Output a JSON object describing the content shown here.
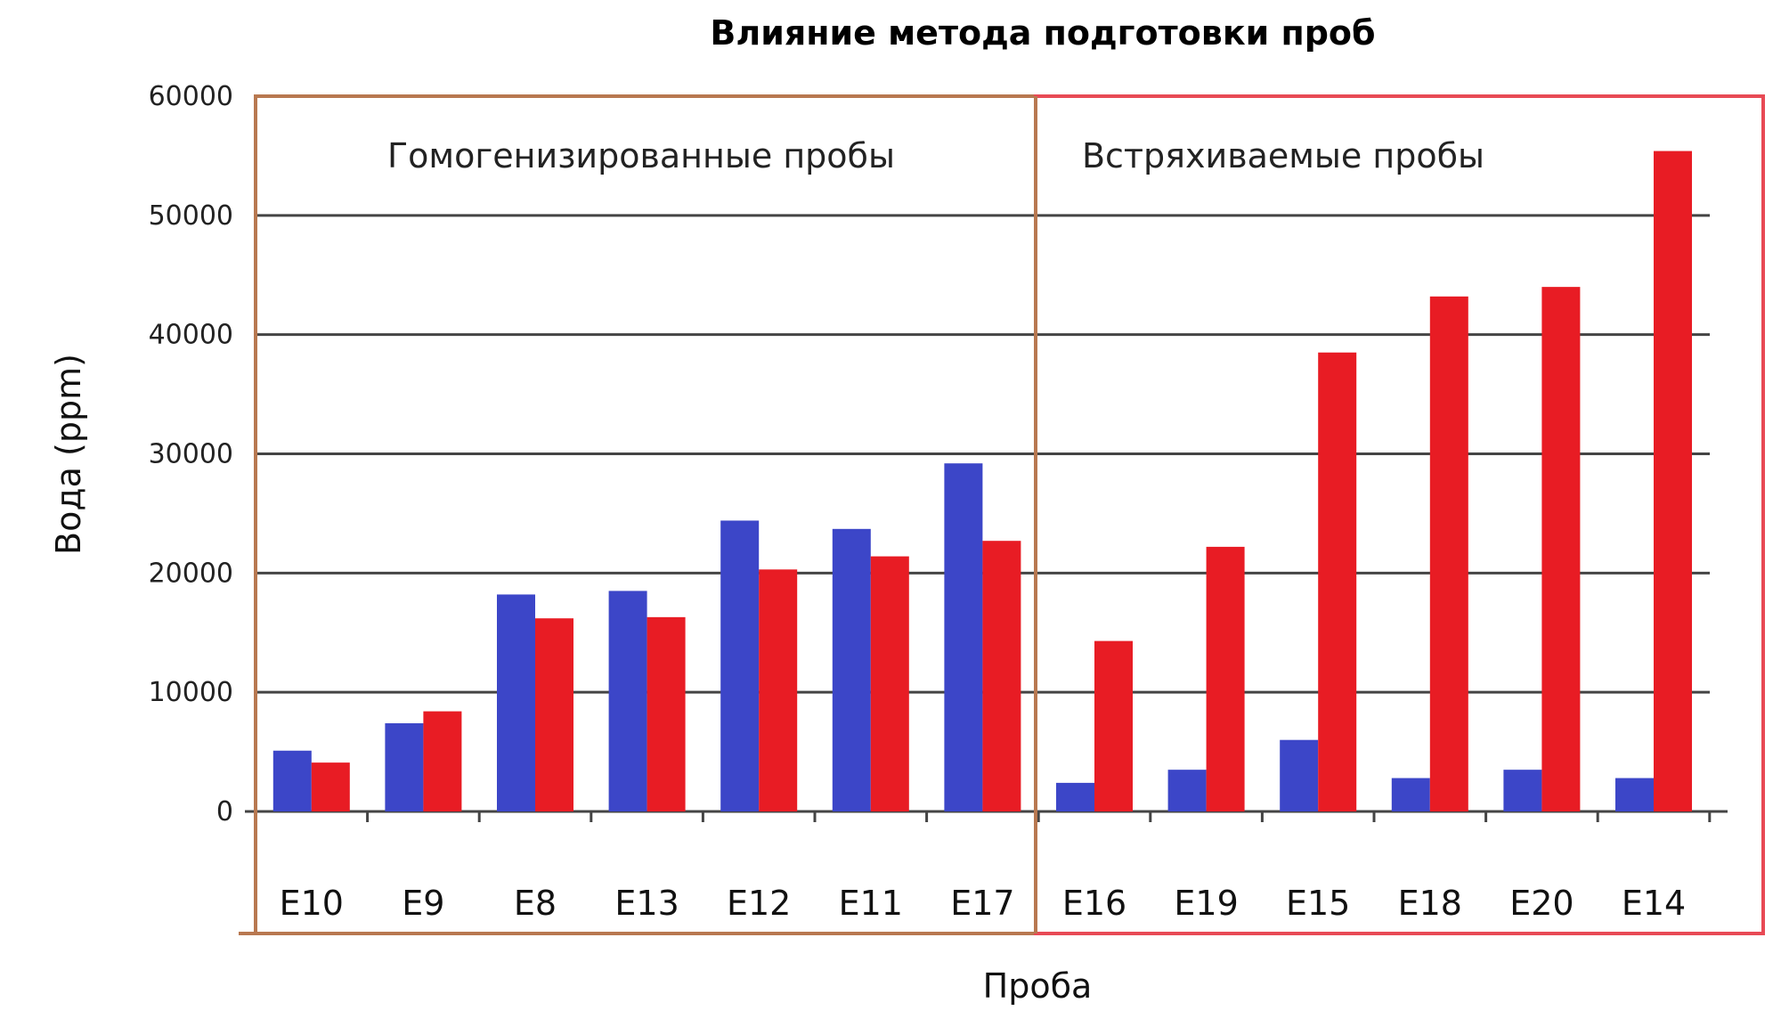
{
  "chart_data": {
    "type": "bar",
    "title": "Влияние метода подготовки проб",
    "xlabel": "Проба",
    "ylabel": "Вода (ppm)",
    "ylim": [
      0,
      60000
    ],
    "yticks": [
      "0",
      "10000",
      "20000",
      "30000",
      "40000",
      "50000",
      "60000"
    ],
    "grid": true,
    "categories": [
      "E10",
      "E9",
      "E8",
      "E13",
      "E12",
      "E11",
      "E17",
      "E16",
      "E19",
      "E15",
      "E18",
      "E20",
      "E14"
    ],
    "series": [
      {
        "color": "#3c46c8",
        "values": [
          5100,
          7400,
          18200,
          18500,
          24400,
          23700,
          29200,
          2400,
          3500,
          6000,
          2800,
          3500,
          2800
        ]
      },
      {
        "color": "#e81c24",
        "values": [
          4100,
          8400,
          16200,
          16300,
          20300,
          21400,
          22700,
          14300,
          22200,
          38500,
          43200,
          44000,
          55400
        ]
      }
    ],
    "groups": [
      {
        "label": "Гомогенизированные пробы",
        "categories": [
          "E10",
          "E9",
          "E8",
          "E13",
          "E12",
          "E11",
          "E17"
        ],
        "color": "#b87850"
      },
      {
        "label": "Встряхиваемые пробы",
        "categories": [
          "E16",
          "E19",
          "E15",
          "E18",
          "E20",
          "E14"
        ],
        "color": "#e84a55"
      }
    ]
  }
}
